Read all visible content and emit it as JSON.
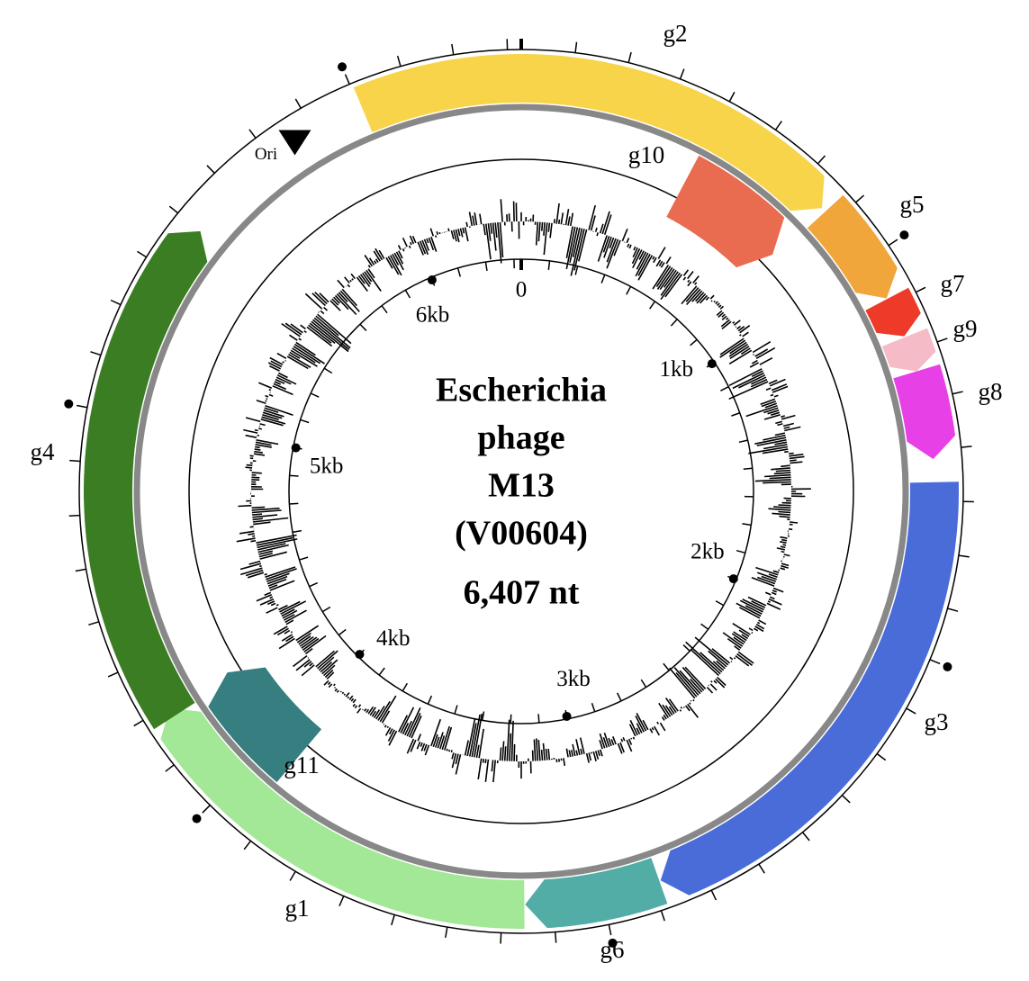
{
  "genome_length": 6407,
  "center": {
    "title_lines": [
      "Escherichia",
      "phage",
      "M13",
      "(V00604)"
    ],
    "length_label": "6,407 nt"
  },
  "origin": {
    "label": "Ori",
    "position": 5820
  },
  "genes": [
    {
      "label": "g2",
      "start": 6006,
      "end": 831,
      "color": "#f8d44a",
      "track": "outer"
    },
    {
      "label": "g10",
      "start": 496,
      "end": 831,
      "color": "#e96b50",
      "track": "inner"
    },
    {
      "label": "g5",
      "start": 843,
      "end": 1106,
      "color": "#f0a63b",
      "track": "outer"
    },
    {
      "label": "g7",
      "start": 1108,
      "end": 1209,
      "color": "#ee3a28",
      "track": "outer"
    },
    {
      "label": "g9",
      "start": 1212,
      "end": 1301,
      "color": "#f5bcc8",
      "track": "outer"
    },
    {
      "label": "g8",
      "start": 1301,
      "end": 1522,
      "color": "#e740e6",
      "track": "outer"
    },
    {
      "label": "g3",
      "start": 1579,
      "end": 2853,
      "color": "#4a6cd9",
      "track": "outer"
    },
    {
      "label": "g6",
      "start": 2856,
      "end": 3194,
      "color": "#52ada6",
      "track": "outer"
    },
    {
      "label": "g1",
      "start": 3196,
      "end": 4242,
      "color": "#a3e896",
      "track": "outer"
    },
    {
      "label": "g11",
      "start": 3916,
      "end": 4242,
      "color": "#367e7f",
      "track": "inner"
    },
    {
      "label": "g4",
      "start": 4219,
      "end": 5500,
      "color": "#3a7d23",
      "track": "outer"
    }
  ],
  "scale_ticks": [
    0,
    {
      "value": 1000,
      "label": "1kb"
    },
    {
      "value": 2000,
      "label": "2kb"
    },
    {
      "value": 3000,
      "label": "3kb"
    },
    {
      "value": 4000,
      "label": "4kb"
    },
    {
      "value": 5000,
      "label": "5kb"
    },
    {
      "value": 6000,
      "label": "6kb"
    }
  ]
}
